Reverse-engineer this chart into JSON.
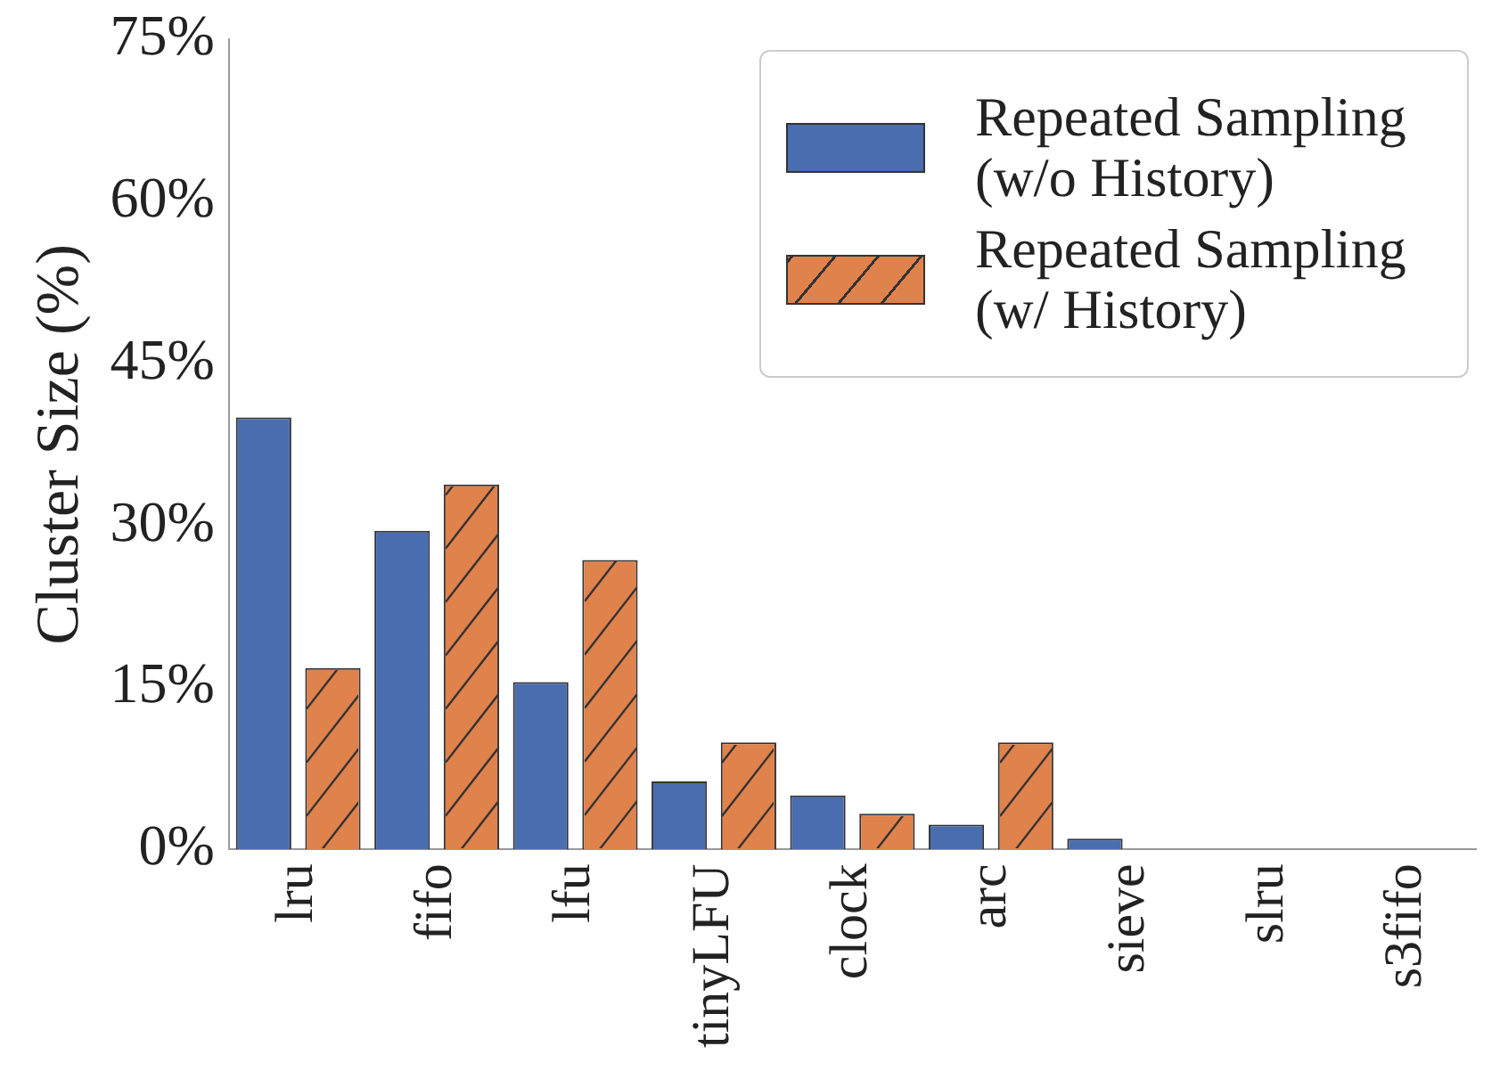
{
  "chart_data": {
    "type": "bar",
    "ylabel": "Cluster Size (%)",
    "categories": [
      "lru",
      "fifo",
      "lfu",
      "tinyLFU",
      "clock",
      "arc",
      "sieve",
      "slru",
      "s3fifo"
    ],
    "series": [
      {
        "name": "Repeated Sampling (w/o History)",
        "color": "#4a6db0",
        "values": [
          40,
          29.5,
          15.5,
          6.3,
          5,
          2.3,
          1,
          0,
          0
        ]
      },
      {
        "name": "Repeated Sampling (w/ History)",
        "color": "#e0824c",
        "values": [
          16.8,
          33.8,
          26.8,
          9.9,
          3.3,
          9.9,
          0,
          0,
          0
        ]
      }
    ],
    "ylim": [
      0,
      75
    ],
    "yticks": [
      {
        "value": 0,
        "label": "0%"
      },
      {
        "value": 15,
        "label": "15%"
      },
      {
        "value": 30,
        "label": "30%"
      },
      {
        "value": 45,
        "label": "45%"
      },
      {
        "value": 60,
        "label": "60%"
      },
      {
        "value": 75,
        "label": "75%"
      }
    ],
    "grid": false,
    "legend": "top right"
  }
}
